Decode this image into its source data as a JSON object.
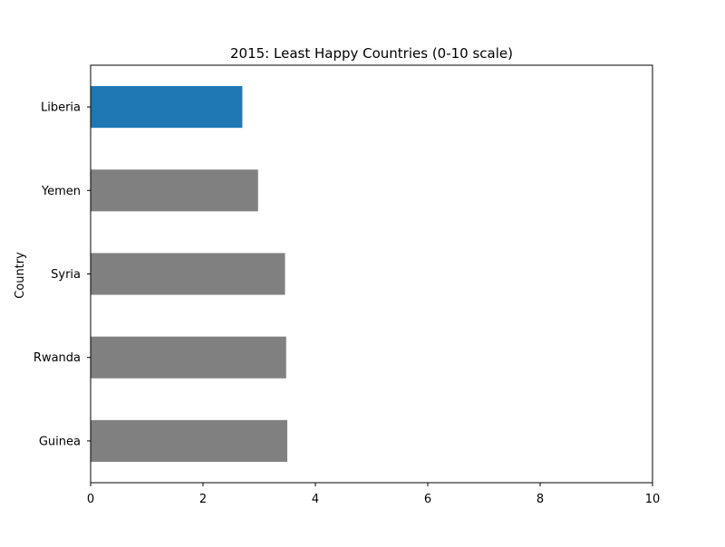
{
  "chart_data": {
    "type": "bar",
    "orientation": "horizontal",
    "title": "2015: Least Happy Countries (0-10 scale)",
    "xlabel": "",
    "ylabel": "Country",
    "categories": [
      "Liberia",
      "Yemen",
      "Syria",
      "Rwanda",
      "Guinea"
    ],
    "values": [
      2.7,
      2.98,
      3.46,
      3.48,
      3.5
    ],
    "bar_colors": [
      "#1f77b4",
      "#808080",
      "#808080",
      "#808080",
      "#808080"
    ],
    "xlim": [
      0,
      10
    ],
    "xticks": [
      0,
      2,
      4,
      6,
      8,
      10
    ],
    "grid": false,
    "legend": "none"
  }
}
